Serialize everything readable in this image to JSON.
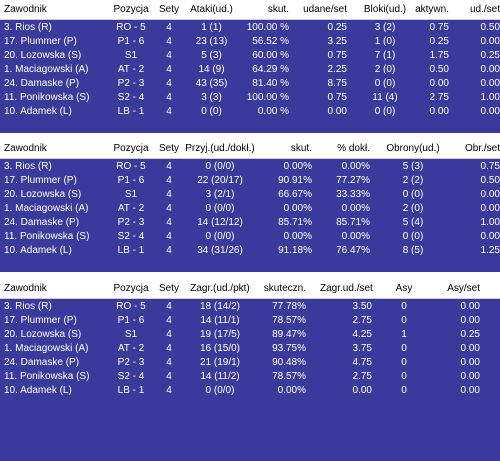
{
  "tables": [
    {
      "headers": [
        "Zawodnik",
        "Pozycja",
        "Sety",
        "Ataki(ud.)",
        "skut.",
        "udane/set",
        "Bloki(ud.)",
        "aktywn.",
        "ud./set"
      ],
      "rows": [
        [
          "3. Rios (R)",
          "RO - 5",
          "4",
          "1 (1)",
          "100.00 %",
          "0.25",
          "3 (2)",
          "0.75",
          "0.50"
        ],
        [
          "17. Plummer (P)",
          "P1 - 6",
          "4",
          "23 (13)",
          "56.52 %",
          "3.25",
          "1 (0)",
          "0.25",
          "0.00"
        ],
        [
          "20. Lozowska (S)",
          "S1",
          "4",
          "5 (3)",
          "60.00 %",
          "0.75",
          "7 (1)",
          "1.75",
          "0.25"
        ],
        [
          "1. Maciagowski (A)",
          "AT - 2",
          "4",
          "14 (9)",
          "64.29 %",
          "2.25",
          "2 (0)",
          "0.50",
          "0.00"
        ],
        [
          "24. Damaske (P)",
          "P2 - 3",
          "4",
          "43 (35)",
          "81.40 %",
          "8.75",
          "0 (0)",
          "0.00",
          "0.00"
        ],
        [
          "11. Ponikowska (S)",
          "S2 - 4",
          "4",
          "3 (3)",
          "100.00 %",
          "0.75",
          "11 (4)",
          "2.75",
          "1.00"
        ],
        [
          "10. Adamek (L)",
          "LB - 1",
          "4",
          "0 (0)",
          "0.00 %",
          "0.00",
          "0 (0)",
          "0.00",
          "0.00"
        ]
      ]
    },
    {
      "headers": [
        "Zawodnik",
        "Pozycja",
        "Sety",
        "Przyj.(ud./dokł.)",
        "skut.",
        "% dokł.",
        "Obrony(ud.)",
        "Obr./set"
      ],
      "rows": [
        [
          "3. Rios (R)",
          "RO - 5",
          "4",
          "0 (0/0)",
          "0.00%",
          "0.00%",
          "5 (3)",
          "0.75"
        ],
        [
          "17. Plummer (P)",
          "P1 - 6",
          "4",
          "22 (20/17)",
          "90.91%",
          "77.27%",
          "2 (2)",
          "0.50"
        ],
        [
          "20. Lozowska (S)",
          "S1",
          "4",
          "3 (2/1)",
          "66.67%",
          "33.33%",
          "0 (0)",
          "0.00"
        ],
        [
          "1. Maciagowski (A)",
          "AT - 2",
          "4",
          "0 (0/0)",
          "0.00%",
          "0.00%",
          "2 (0)",
          "0.00"
        ],
        [
          "24. Damaske (P)",
          "P2 - 3",
          "4",
          "14 (12/12)",
          "85.71%",
          "85.71%",
          "5 (4)",
          "1.00"
        ],
        [
          "11. Ponikowska (S)",
          "S2 - 4",
          "4",
          "0 (0/0)",
          "0.00%",
          "0.00%",
          "0 (0)",
          "0.00"
        ],
        [
          "10. Adamek (L)",
          "LB - 1",
          "4",
          "34 (31/26)",
          "91.18%",
          "76.47%",
          "8 (5)",
          "1.25"
        ]
      ]
    },
    {
      "headers": [
        "Zawodnik",
        "Pozycja",
        "Sety",
        "Zagr.(ud./pkt)",
        "skuteczn.",
        "Zagr.ud./set",
        "Asy",
        "Asy/set"
      ],
      "rows": [
        [
          "3. Rios (R)",
          "RO - 5",
          "4",
          "18 (14/2)",
          "77.78%",
          "3.50",
          "0",
          "0.00"
        ],
        [
          "17. Plummer (P)",
          "P1 - 6",
          "4",
          "14 (11/1)",
          "78.57%",
          "2.75",
          "0",
          "0.00"
        ],
        [
          "20. Lozowska (S)",
          "S1",
          "4",
          "19 (17/5)",
          "89.47%",
          "4.25",
          "1",
          "0.25"
        ],
        [
          "1. Maciagowski (A)",
          "AT - 2",
          "4",
          "16 (15/0)",
          "93.75%",
          "3.75",
          "0",
          "0.00"
        ],
        [
          "24. Damaske (P)",
          "P2 - 3",
          "4",
          "21 (19/1)",
          "90.48%",
          "4.75",
          "0",
          "0.00"
        ],
        [
          "11. Ponikowska (S)",
          "S2 - 4",
          "4",
          "14 (11/2)",
          "78.57%",
          "2.75",
          "0",
          "0.00"
        ],
        [
          "10. Adamek (L)",
          "LB - 1",
          "4",
          "0 (0/0)",
          "0.00%",
          "0.00",
          "0",
          "0.00"
        ]
      ]
    }
  ]
}
